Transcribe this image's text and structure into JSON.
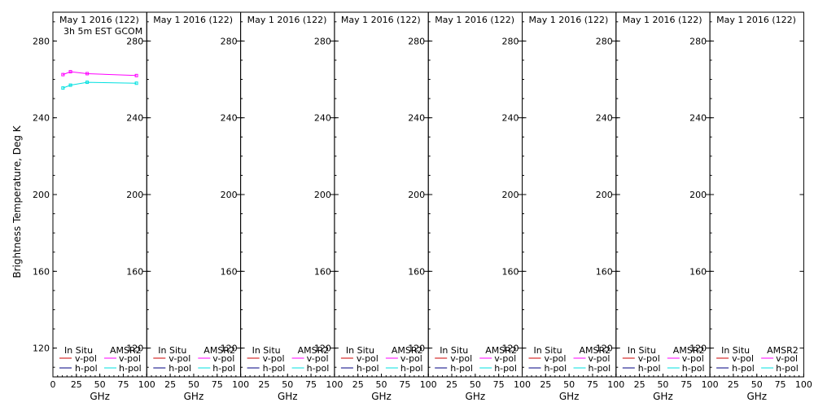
{
  "chart_data": [
    {
      "type": "line",
      "title": "May 1 2016 (122)",
      "subtitle": "3h 5m EST GCOM",
      "xlabel": "GHz",
      "ylabel": "Brightness Temperature, Deg K",
      "xlim": [
        0,
        100
      ],
      "ylim": [
        105,
        295
      ],
      "x_ticks": [
        "0",
        "25",
        "50",
        "75",
        "100"
      ],
      "y_ticks": [
        "120",
        "160",
        "200",
        "240",
        "280"
      ],
      "legend": {
        "placement": "bottom",
        "left_header": "In Situ",
        "right_header": "AMSR2",
        "v_label": "v-pol",
        "h_label": "h-pol"
      },
      "series": [
        {
          "name": "AMSR2 v-pol",
          "color": "#ff00ff",
          "x": [
            10.7,
            18.7,
            36.5,
            89.0
          ],
          "y": [
            262.5,
            264.0,
            263.0,
            262.0
          ]
        },
        {
          "name": "AMSR2 h-pol",
          "color": "#00e0e0",
          "x": [
            10.7,
            18.7,
            36.5,
            89.0
          ],
          "y": [
            255.5,
            257.0,
            258.5,
            258.0
          ]
        }
      ]
    },
    {
      "type": "line",
      "title": "May 1 2016 (122)",
      "xlabel": "GHz",
      "xlim": [
        0,
        100
      ],
      "ylim": [
        105,
        295
      ],
      "x_ticks": [
        "25",
        "50",
        "75",
        "100"
      ],
      "y_ticks": [
        "120",
        "160",
        "200",
        "240",
        "280"
      ],
      "legend": {
        "placement": "bottom",
        "left_header": "In Situ",
        "right_header": "AMSR2",
        "v_label": "v-pol",
        "h_label": "h-pol"
      },
      "series": []
    },
    {
      "type": "line",
      "title": "May 1 2016 (122)",
      "xlabel": "GHz",
      "xlim": [
        0,
        100
      ],
      "ylim": [
        105,
        295
      ],
      "x_ticks": [
        "25",
        "50",
        "75",
        "100"
      ],
      "y_ticks": [
        "120",
        "160",
        "200",
        "240",
        "280"
      ],
      "legend": {
        "placement": "bottom",
        "left_header": "In Situ",
        "right_header": "AMSR2",
        "v_label": "v-pol",
        "h_label": "h-pol"
      },
      "series": []
    },
    {
      "type": "line",
      "title": "May 1 2016 (122)",
      "xlabel": "GHz",
      "xlim": [
        0,
        100
      ],
      "ylim": [
        105,
        295
      ],
      "x_ticks": [
        "25",
        "50",
        "75",
        "100"
      ],
      "y_ticks": [
        "120",
        "160",
        "200",
        "240",
        "280"
      ],
      "legend": {
        "placement": "bottom",
        "left_header": "In Situ",
        "right_header": "AMSR2",
        "v_label": "v-pol",
        "h_label": "h-pol"
      },
      "series": []
    },
    {
      "type": "line",
      "title": "May 1 2016 (122)",
      "xlabel": "GHz",
      "xlim": [
        0,
        100
      ],
      "ylim": [
        105,
        295
      ],
      "x_ticks": [
        "25",
        "50",
        "75",
        "100"
      ],
      "y_ticks": [
        "120",
        "160",
        "200",
        "240",
        "280"
      ],
      "legend": {
        "placement": "bottom",
        "left_header": "In Situ",
        "right_header": "AMSR2",
        "v_label": "v-pol",
        "h_label": "h-pol"
      },
      "series": []
    },
    {
      "type": "line",
      "title": "May 1 2016 (122)",
      "xlabel": "GHz",
      "xlim": [
        0,
        100
      ],
      "ylim": [
        105,
        295
      ],
      "x_ticks": [
        "25",
        "50",
        "75",
        "100"
      ],
      "y_ticks": [
        "120",
        "160",
        "200",
        "240",
        "280"
      ],
      "legend": {
        "placement": "bottom",
        "left_header": "In Situ",
        "right_header": "AMSR2",
        "v_label": "v-pol",
        "h_label": "h-pol"
      },
      "series": []
    },
    {
      "type": "line",
      "title": "May 1 2016 (122)",
      "xlabel": "GHz",
      "xlim": [
        0,
        100
      ],
      "ylim": [
        105,
        295
      ],
      "x_ticks": [
        "25",
        "50",
        "75",
        "100"
      ],
      "y_ticks": [
        "120",
        "160",
        "200",
        "240",
        "280"
      ],
      "legend": {
        "placement": "bottom",
        "left_header": "In Situ",
        "right_header": "AMSR2",
        "v_label": "v-pol",
        "h_label": "h-pol"
      },
      "series": []
    },
    {
      "type": "line",
      "title": "May 1 2016 (122)",
      "xlabel": "GHz",
      "xlim": [
        0,
        100
      ],
      "ylim": [
        105,
        295
      ],
      "x_ticks": [
        "25",
        "50",
        "75",
        "100"
      ],
      "y_ticks": [
        "120",
        "160",
        "200",
        "240",
        "280"
      ],
      "legend": {
        "placement": "bottom",
        "left_header": "In Situ",
        "right_header": "AMSR2",
        "v_label": "v-pol",
        "h_label": "h-pol"
      },
      "series": []
    }
  ],
  "colors": {
    "insitu_v": "#cc0000",
    "insitu_h": "#000080",
    "amsr2_v": "#ff00ff",
    "amsr2_h": "#00e0e0"
  }
}
